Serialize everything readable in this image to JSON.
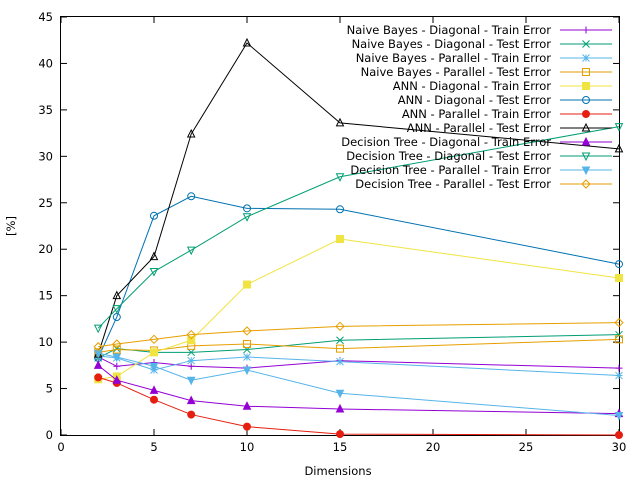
{
  "chart_data": {
    "type": "line",
    "title": "",
    "xlabel": "Dimensions",
    "ylabel": "[%]",
    "xlim": [
      0,
      30
    ],
    "ylim": [
      0,
      45
    ],
    "xticks": [
      0,
      5,
      10,
      15,
      20,
      25,
      30
    ],
    "yticks": [
      0,
      5,
      10,
      15,
      20,
      25,
      30,
      35,
      40,
      45
    ],
    "grid": false,
    "legend_position": "top-right",
    "x": [
      2,
      3,
      5,
      7,
      10,
      15,
      30
    ],
    "series": [
      {
        "name": "Naive Bayes - Diagonal - Train Error",
        "color": "#9400d3",
        "marker": "plus",
        "values": [
          8.4,
          7.4,
          7.8,
          7.4,
          7.2,
          8.0,
          7.2
        ]
      },
      {
        "name": "Naive Bayes - Diagonal - Test Error",
        "color": "#009e73",
        "marker": "cross",
        "values": [
          8.3,
          9.3,
          8.9,
          8.9,
          9.2,
          10.2,
          10.8
        ]
      },
      {
        "name": "Naive Bayes - Parallel - Train Error",
        "color": "#56b4e9",
        "marker": "star",
        "values": [
          8.5,
          8.3,
          7.0,
          8.0,
          8.4,
          7.9,
          6.4
        ]
      },
      {
        "name": "Naive Bayes - Parallel - Test Error",
        "color": "#e69f00",
        "marker": "square",
        "values": [
          8.9,
          9.2,
          9.1,
          9.6,
          9.8,
          9.3,
          10.3
        ]
      },
      {
        "name": "ANN - Diagonal - Train Error",
        "color": "#f0e442",
        "marker": "filled-square",
        "values": [
          6.0,
          6.3,
          8.9,
          10.2,
          16.2,
          21.1,
          16.9
        ]
      },
      {
        "name": "ANN - Diagonal - Test Error",
        "color": "#0072b2",
        "marker": "circle",
        "values": [
          8.3,
          12.7,
          23.6,
          25.7,
          24.4,
          24.3,
          18.4
        ]
      },
      {
        "name": "ANN - Parallel - Train Error",
        "color": "#e51e10",
        "marker": "filled-circle",
        "values": [
          6.2,
          5.6,
          3.8,
          2.2,
          0.9,
          0.1,
          0.0
        ]
      },
      {
        "name": "ANN - Parallel - Test Error",
        "color": "#000000",
        "marker": "triangle",
        "values": [
          8.7,
          15.0,
          19.2,
          32.4,
          42.2,
          33.6,
          30.8
        ]
      },
      {
        "name": "Decision Tree - Diagonal - Train Error",
        "color": "#9400d3",
        "marker": "filled-triangle",
        "values": [
          7.5,
          5.9,
          4.8,
          3.7,
          3.1,
          2.8,
          2.3
        ]
      },
      {
        "name": "Decision Tree - Diagonal - Test Error",
        "color": "#009e73",
        "marker": "inverted-triangle",
        "values": [
          11.5,
          13.6,
          17.6,
          19.9,
          23.5,
          27.8,
          33.2
        ]
      },
      {
        "name": "Decision Tree - Parallel - Train Error",
        "color": "#56b4e9",
        "marker": "filled-inverted-triangle",
        "values": [
          8.8,
          8.4,
          7.4,
          5.9,
          7.0,
          4.5,
          2.1
        ]
      },
      {
        "name": "Decision Tree - Parallel - Test Error",
        "color": "#e69f00",
        "marker": "diamond",
        "values": [
          9.5,
          9.8,
          10.3,
          10.8,
          11.2,
          11.7,
          12.1
        ]
      }
    ]
  }
}
